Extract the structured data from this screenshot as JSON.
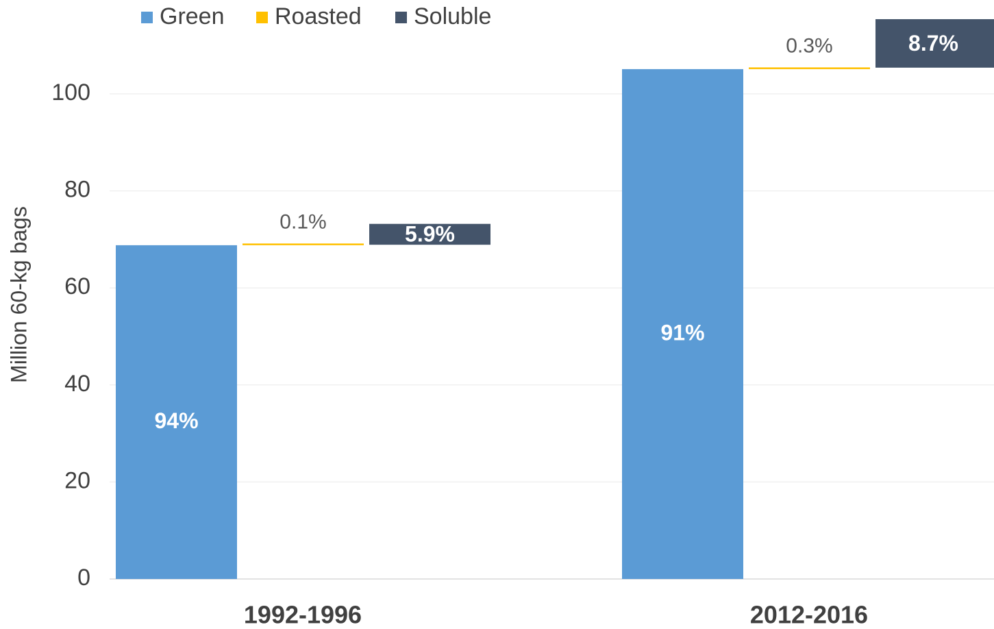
{
  "chart_data": {
    "type": "floating_bar",
    "y_axis_label": "Million 60-kg bags",
    "categories": [
      "1992-1996",
      "2012-2016"
    ],
    "series": [
      {
        "name": "Green",
        "color": "#5b9bd5",
        "values": [
          68.8,
          105.1
        ],
        "labels": [
          "94%",
          "91%"
        ]
      },
      {
        "name": "Roasted",
        "color": "#ffc000",
        "values": [
          0.1,
          0.3
        ],
        "labels": [
          "0.1%",
          "0.3%"
        ]
      },
      {
        "name": "Soluble",
        "color": "#44546a",
        "values": [
          4.3,
          10.0
        ],
        "labels": [
          "5.9%",
          "8.7%"
        ]
      }
    ],
    "ylim": [
      0,
      120
    ],
    "yticks": [
      0,
      20,
      40,
      60,
      80,
      100
    ],
    "grid": true,
    "legend": "top"
  }
}
